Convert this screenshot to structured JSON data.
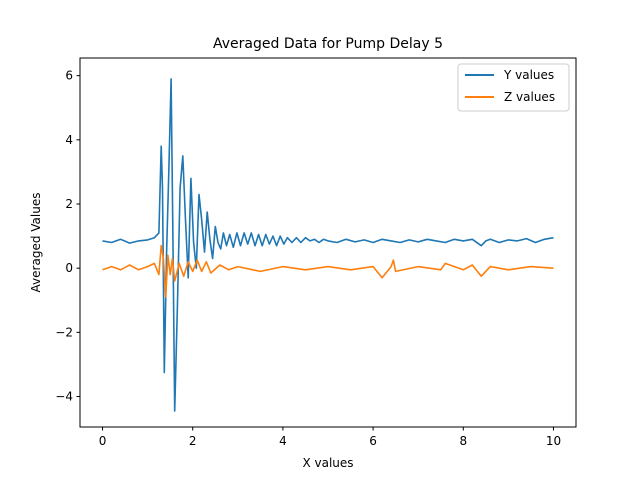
{
  "chart_data": {
    "type": "line",
    "title": "Averaged Data for Pump Delay 5",
    "xlabel": "X values",
    "ylabel": "Averaged Values",
    "xlim": [
      -0.5,
      10.5
    ],
    "ylim": [
      -4.95,
      6.55
    ],
    "xticks": [
      0,
      2,
      4,
      6,
      8,
      10
    ],
    "xtick_labels": [
      "0",
      "2",
      "4",
      "6",
      "8",
      "10"
    ],
    "yticks": [
      -4,
      -2,
      0,
      2,
      4,
      6
    ],
    "ytick_labels": [
      "−4",
      "−2",
      "0",
      "2",
      "4",
      "6"
    ],
    "grid": false,
    "legend_position": "upper right",
    "series": [
      {
        "name": "Y values",
        "color": "#1f77b4",
        "x": [
          0,
          0.2,
          0.4,
          0.6,
          0.8,
          1.0,
          1.15,
          1.25,
          1.3,
          1.33,
          1.37,
          1.42,
          1.47,
          1.52,
          1.56,
          1.6,
          1.66,
          1.72,
          1.78,
          1.84,
          1.9,
          1.96,
          2.02,
          2.08,
          2.14,
          2.2,
          2.26,
          2.32,
          2.38,
          2.44,
          2.5,
          2.56,
          2.62,
          2.68,
          2.75,
          2.82,
          2.9,
          2.98,
          3.06,
          3.14,
          3.22,
          3.3,
          3.38,
          3.46,
          3.54,
          3.62,
          3.7,
          3.78,
          3.86,
          3.94,
          4.02,
          4.1,
          4.2,
          4.3,
          4.4,
          4.5,
          4.6,
          4.7,
          4.8,
          4.9,
          5.0,
          5.2,
          5.4,
          5.6,
          5.8,
          6.0,
          6.2,
          6.4,
          6.6,
          6.8,
          7.0,
          7.2,
          7.4,
          7.6,
          7.8,
          8.0,
          8.2,
          8.4,
          8.5,
          8.6,
          8.8,
          9.0,
          9.2,
          9.4,
          9.6,
          9.8,
          10.0
        ],
        "values": [
          0.85,
          0.8,
          0.9,
          0.78,
          0.85,
          0.88,
          0.95,
          1.1,
          3.8,
          2.5,
          -3.25,
          0.5,
          3.0,
          5.9,
          1.0,
          -4.45,
          -1.2,
          2.5,
          3.5,
          1.5,
          -0.3,
          2.8,
          0.8,
          0.0,
          2.3,
          1.5,
          0.5,
          1.75,
          0.9,
          0.3,
          1.3,
          0.8,
          0.6,
          1.1,
          0.7,
          1.05,
          0.65,
          1.1,
          0.7,
          1.1,
          0.75,
          1.1,
          0.7,
          1.05,
          0.7,
          1.05,
          0.75,
          1.0,
          0.7,
          1.0,
          0.75,
          0.95,
          0.8,
          0.95,
          0.8,
          0.95,
          0.85,
          0.9,
          0.8,
          0.9,
          0.85,
          0.8,
          0.9,
          0.82,
          0.88,
          0.8,
          0.9,
          0.85,
          0.8,
          0.88,
          0.82,
          0.9,
          0.85,
          0.8,
          0.9,
          0.85,
          0.9,
          0.7,
          0.85,
          0.9,
          0.8,
          0.88,
          0.85,
          0.92,
          0.8,
          0.9,
          0.95
        ]
      },
      {
        "name": "Z values",
        "color": "#ff7f0e",
        "x": [
          0,
          0.2,
          0.4,
          0.6,
          0.8,
          1.0,
          1.15,
          1.25,
          1.3,
          1.35,
          1.4,
          1.45,
          1.5,
          1.55,
          1.6,
          1.7,
          1.8,
          1.9,
          2.0,
          2.1,
          2.2,
          2.3,
          2.4,
          2.6,
          2.8,
          3.0,
          3.5,
          4.0,
          4.5,
          5.0,
          5.5,
          6.0,
          6.2,
          6.4,
          6.45,
          6.5,
          7.0,
          7.5,
          7.6,
          8.0,
          8.2,
          8.4,
          8.6,
          9.0,
          9.5,
          10.0
        ],
        "values": [
          -0.05,
          0.05,
          -0.05,
          0.1,
          -0.05,
          0.05,
          0.15,
          -0.2,
          0.7,
          0.3,
          -0.9,
          0.4,
          -0.2,
          0.3,
          -0.4,
          0.15,
          -0.25,
          0.2,
          -0.1,
          0.25,
          -0.1,
          0.2,
          -0.15,
          0.1,
          -0.05,
          0.05,
          -0.1,
          0.05,
          -0.05,
          0.05,
          -0.05,
          0.05,
          -0.3,
          0.05,
          0.25,
          -0.1,
          0.05,
          -0.05,
          0.15,
          -0.05,
          0.1,
          -0.25,
          0.05,
          -0.05,
          0.05,
          0.0
        ]
      }
    ]
  }
}
